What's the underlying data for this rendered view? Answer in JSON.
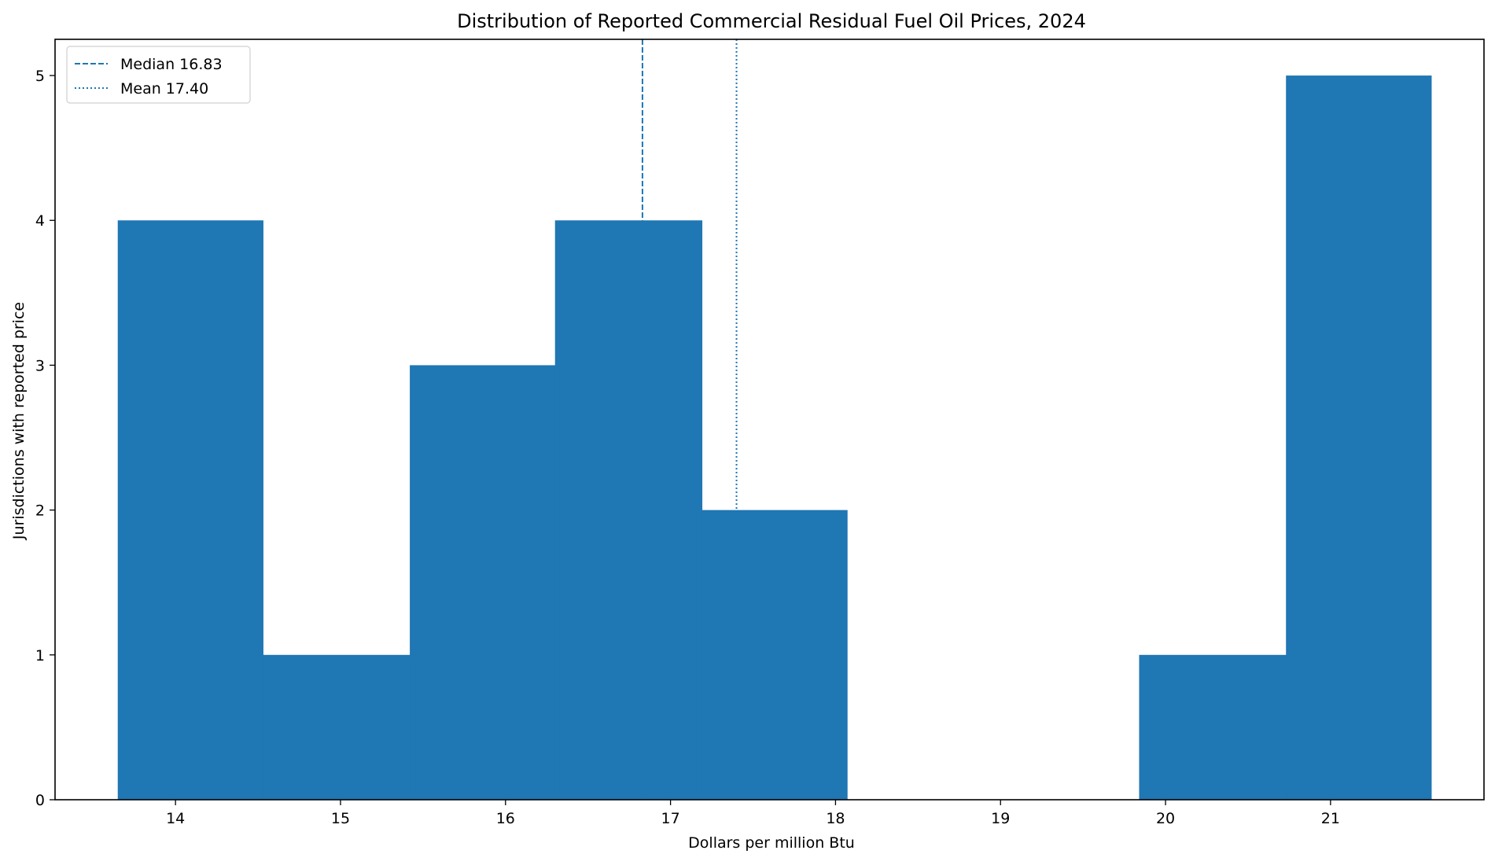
{
  "chart_data": {
    "type": "bar",
    "subtype": "histogram",
    "title": "Distribution of Reported Commercial Residual Fuel Oil Prices, 2024",
    "xlabel": "Dollars per million Btu",
    "ylabel": "Jurisdictions with reported price",
    "xlim": [
      13.27,
      21.93
    ],
    "ylim": [
      0,
      5.25
    ],
    "x_ticks": [
      14,
      15,
      16,
      17,
      18,
      19,
      20,
      21
    ],
    "y_ticks": [
      0,
      1,
      2,
      3,
      4,
      5
    ],
    "bin_edges": [
      13.65,
      14.53,
      15.42,
      16.3,
      17.19,
      18.07,
      18.96,
      19.84,
      20.73,
      21.61
    ],
    "counts": [
      4,
      1,
      3,
      4,
      2,
      0,
      0,
      1,
      5
    ],
    "bar_color": "#1f77b4",
    "grid": false,
    "reference_lines": [
      {
        "label": "Median 16.83",
        "value": 16.83,
        "style": "dashed",
        "color": "#1f77b4"
      },
      {
        "label": "Mean 17.40",
        "value": 17.4,
        "style": "dotted",
        "color": "#1f77b4"
      }
    ],
    "legend": {
      "position": "top-left"
    }
  }
}
